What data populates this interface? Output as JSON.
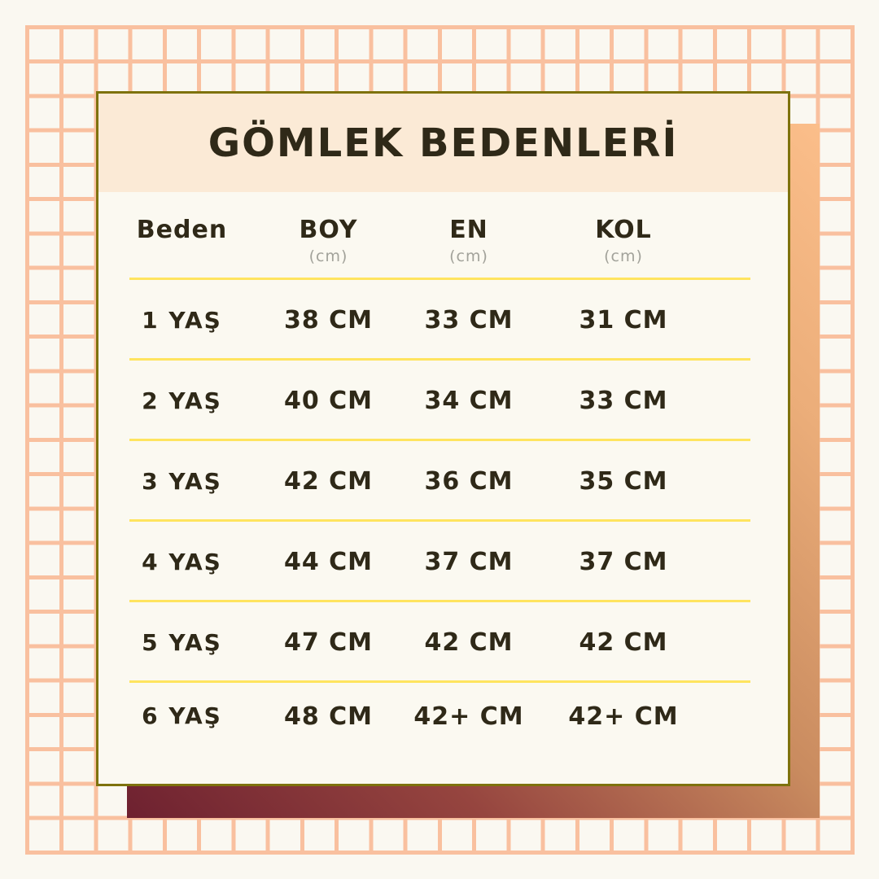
{
  "title": "GÖMLEK BEDENLERİ",
  "table": {
    "columns": [
      {
        "label": "Beden",
        "unit": ""
      },
      {
        "label": "BOY",
        "unit": "(cm)"
      },
      {
        "label": "EN",
        "unit": "(cm)"
      },
      {
        "label": "KOL",
        "unit": "(cm)"
      }
    ],
    "rows": [
      {
        "size": "1 YAŞ",
        "boy": "38 CM",
        "en": "33 CM",
        "kol": "31 CM"
      },
      {
        "size": "2 YAŞ",
        "boy": "40 CM",
        "en": "34 CM",
        "kol": "33 CM"
      },
      {
        "size": "3 YAŞ",
        "boy": "42 CM",
        "en": "36 CM",
        "kol": "35 CM"
      },
      {
        "size": "4 YAŞ",
        "boy": "44 CM",
        "en": "37 CM",
        "kol": "37 CM"
      },
      {
        "size": "5 YAŞ",
        "boy": "47 CM",
        "en": "42 CM",
        "kol": "42 CM"
      },
      {
        "size": "6 YAŞ",
        "boy": "48 CM",
        "en": "42+ CM",
        "kol": "42+ CM"
      }
    ]
  },
  "colors": {
    "page_bg": "#FAF8F1",
    "grid_line": "#F9C09F",
    "card_border": "#7E720D",
    "card_bg": "#FBF9F1",
    "header_bg": "#FBEAD6",
    "divider": "#FFE45F",
    "text": "#2F2918",
    "unit_text": "#A2A29A",
    "backdrop_gradient_start": "#6E2130",
    "backdrop_gradient_end": "#FBBE8A"
  },
  "chart_data": {
    "type": "table",
    "title": "GÖMLEK BEDENLERİ",
    "columns": [
      "Beden",
      "BOY (cm)",
      "EN (cm)",
      "KOL (cm)"
    ],
    "rows": [
      [
        "1 YAŞ",
        "38 CM",
        "33 CM",
        "31 CM"
      ],
      [
        "2 YAŞ",
        "40 CM",
        "34 CM",
        "33 CM"
      ],
      [
        "3 YAŞ",
        "42 CM",
        "36 CM",
        "35 CM"
      ],
      [
        "4 YAŞ",
        "44 CM",
        "37 CM",
        "37 CM"
      ],
      [
        "5 YAŞ",
        "47 CM",
        "42 CM",
        "42 CM"
      ],
      [
        "6 YAŞ",
        "48 CM",
        "42+ CM",
        "42+ CM"
      ]
    ],
    "legend_position": "none",
    "grid": false
  }
}
